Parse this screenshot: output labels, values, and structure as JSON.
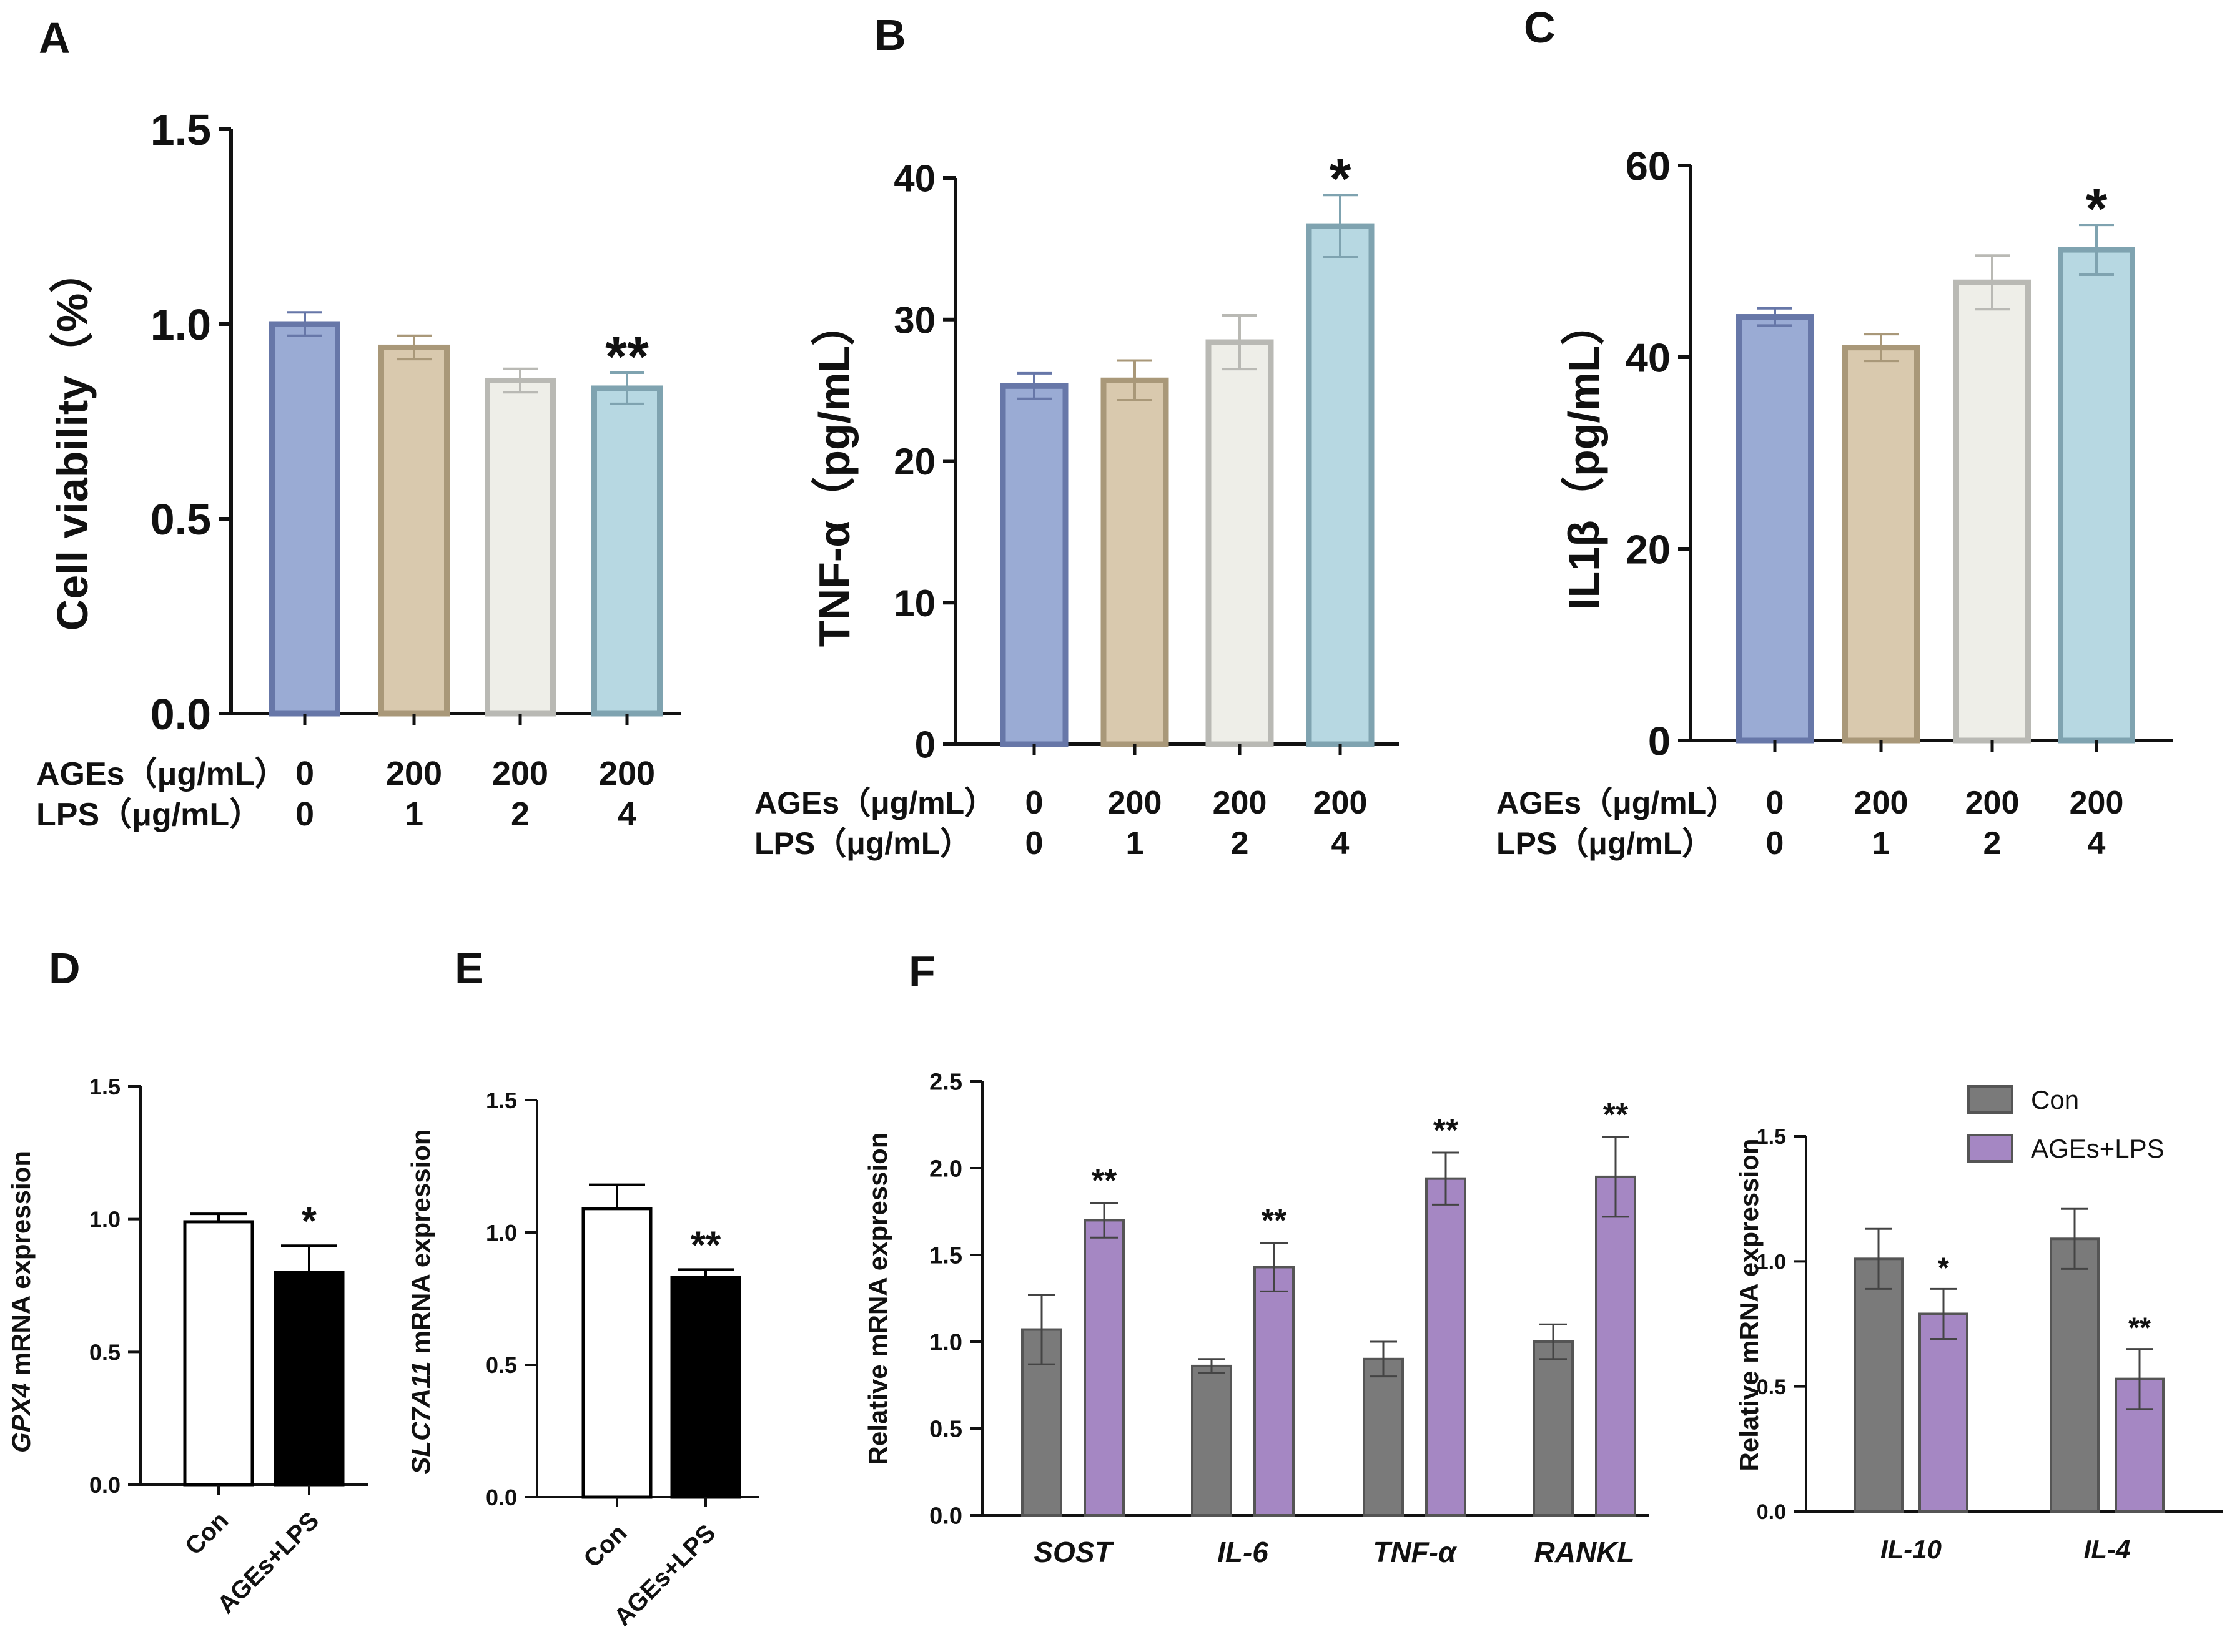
{
  "panel_letters": [
    "A",
    "B",
    "C",
    "D",
    "E",
    "F"
  ],
  "colors": {
    "treatment_fill": [
      "#9aabd4",
      "#d9c9ae",
      "#eeeee8",
      "#b7d8e2"
    ],
    "treatment_stroke": [
      "#6777a8",
      "#a99879",
      "#b9b9b4",
      "#7fa3b0"
    ],
    "con_fill": "#7a7a7a",
    "ages_fill": "#a587c3",
    "error_color": "#777777"
  },
  "chart_data": [
    {
      "id": "A",
      "type": "bar",
      "ylabel": "Cell viability（%）",
      "ylim": [
        0,
        1.5
      ],
      "yticks": [
        "0.0",
        "0.5",
        "1.0",
        "1.5"
      ],
      "row_labels": [
        "AGEs（μg/mL）",
        "LPS（μg/mL）"
      ],
      "ages": [
        "0",
        "200",
        "200",
        "200"
      ],
      "lps": [
        "0",
        "1",
        "2",
        "4"
      ],
      "values": [
        1.0,
        0.94,
        0.855,
        0.835
      ],
      "errors": [
        0.03,
        0.03,
        0.03,
        0.04
      ],
      "significance": [
        "",
        "",
        "",
        "**"
      ]
    },
    {
      "id": "B",
      "type": "bar",
      "ylabel": "TNF-α（pg/mL）",
      "ylim": [
        0,
        40
      ],
      "yticks": [
        "0",
        "10",
        "20",
        "30",
        "40"
      ],
      "row_labels": [
        "AGEs（μg/mL）",
        "LPS（μg/mL）"
      ],
      "ages": [
        "0",
        "200",
        "200",
        "200"
      ],
      "lps": [
        "0",
        "1",
        "2",
        "4"
      ],
      "values": [
        25.3,
        25.7,
        28.4,
        36.6
      ],
      "errors": [
        0.9,
        1.4,
        1.9,
        2.2
      ],
      "significance": [
        "",
        "",
        "",
        "*"
      ]
    },
    {
      "id": "C",
      "type": "bar",
      "ylabel": "IL1β（pg/mL）",
      "ylim": [
        0,
        60
      ],
      "yticks": [
        "0",
        "20",
        "40",
        "60"
      ],
      "row_labels": [
        "AGEs（μg/mL）",
        "LPS（μg/mL）"
      ],
      "ages": [
        "0",
        "200",
        "200",
        "200"
      ],
      "lps": [
        "0",
        "1",
        "2",
        "4"
      ],
      "values": [
        44.2,
        41.0,
        47.8,
        51.2
      ],
      "errors": [
        0.9,
        1.4,
        2.8,
        2.6
      ],
      "significance": [
        "",
        "",
        "",
        "*"
      ]
    },
    {
      "id": "D",
      "type": "bar",
      "ylabel_gene": "GPX4",
      "ylabel_rest": " mRNA expression",
      "ylim": [
        0,
        1.5
      ],
      "yticks": [
        "0.0",
        "0.5",
        "1.0",
        "1.5"
      ],
      "categories": [
        "Con",
        "AGEs+LPS"
      ],
      "values": [
        0.99,
        0.8
      ],
      "errors": [
        0.03,
        0.1
      ],
      "significance": [
        "",
        "*"
      ]
    },
    {
      "id": "E",
      "type": "bar",
      "ylabel_gene": "SLC7A11",
      "ylabel_rest": " mRNA expression",
      "ylim": [
        0,
        1.5
      ],
      "yticks": [
        "0.0",
        "0.5",
        "1.0",
        "1.5"
      ],
      "categories": [
        "Con",
        "AGEs+LPS"
      ],
      "values": [
        1.09,
        0.83
      ],
      "errors": [
        0.09,
        0.03
      ],
      "significance": [
        "",
        "**"
      ]
    },
    {
      "id": "F1",
      "type": "bar",
      "ylabel": "Relative mRNA expression",
      "ylim": [
        0,
        2.5
      ],
      "yticks": [
        "0.0",
        "0.5",
        "1.0",
        "1.5",
        "2.0",
        "2.5"
      ],
      "categories": [
        "SOST",
        "IL-6",
        "TNF-α",
        "RANKL"
      ],
      "series": [
        {
          "name": "Con",
          "values": [
            1.07,
            0.86,
            0.9,
            1.0
          ],
          "errors": [
            0.2,
            0.04,
            0.1,
            0.1
          ]
        },
        {
          "name": "AGEs+LPS",
          "values": [
            1.7,
            1.43,
            1.94,
            1.95
          ],
          "errors": [
            0.1,
            0.14,
            0.15,
            0.23
          ]
        }
      ],
      "significance": [
        "**",
        "**",
        "**",
        "**"
      ]
    },
    {
      "id": "F2",
      "type": "bar",
      "ylabel": "Relative mRNA expression",
      "ylim": [
        0,
        1.5
      ],
      "yticks": [
        "0.0",
        "0.5",
        "1.0",
        "1.5"
      ],
      "categories": [
        "IL-10",
        "IL-4"
      ],
      "series": [
        {
          "name": "Con",
          "values": [
            1.01,
            1.09
          ],
          "errors": [
            0.12,
            0.12
          ]
        },
        {
          "name": "AGEs+LPS",
          "values": [
            0.79,
            0.53
          ],
          "errors": [
            0.1,
            0.12
          ]
        }
      ],
      "significance": [
        "*",
        "**"
      ],
      "legend": [
        "Con",
        "AGEs+LPS"
      ]
    }
  ]
}
